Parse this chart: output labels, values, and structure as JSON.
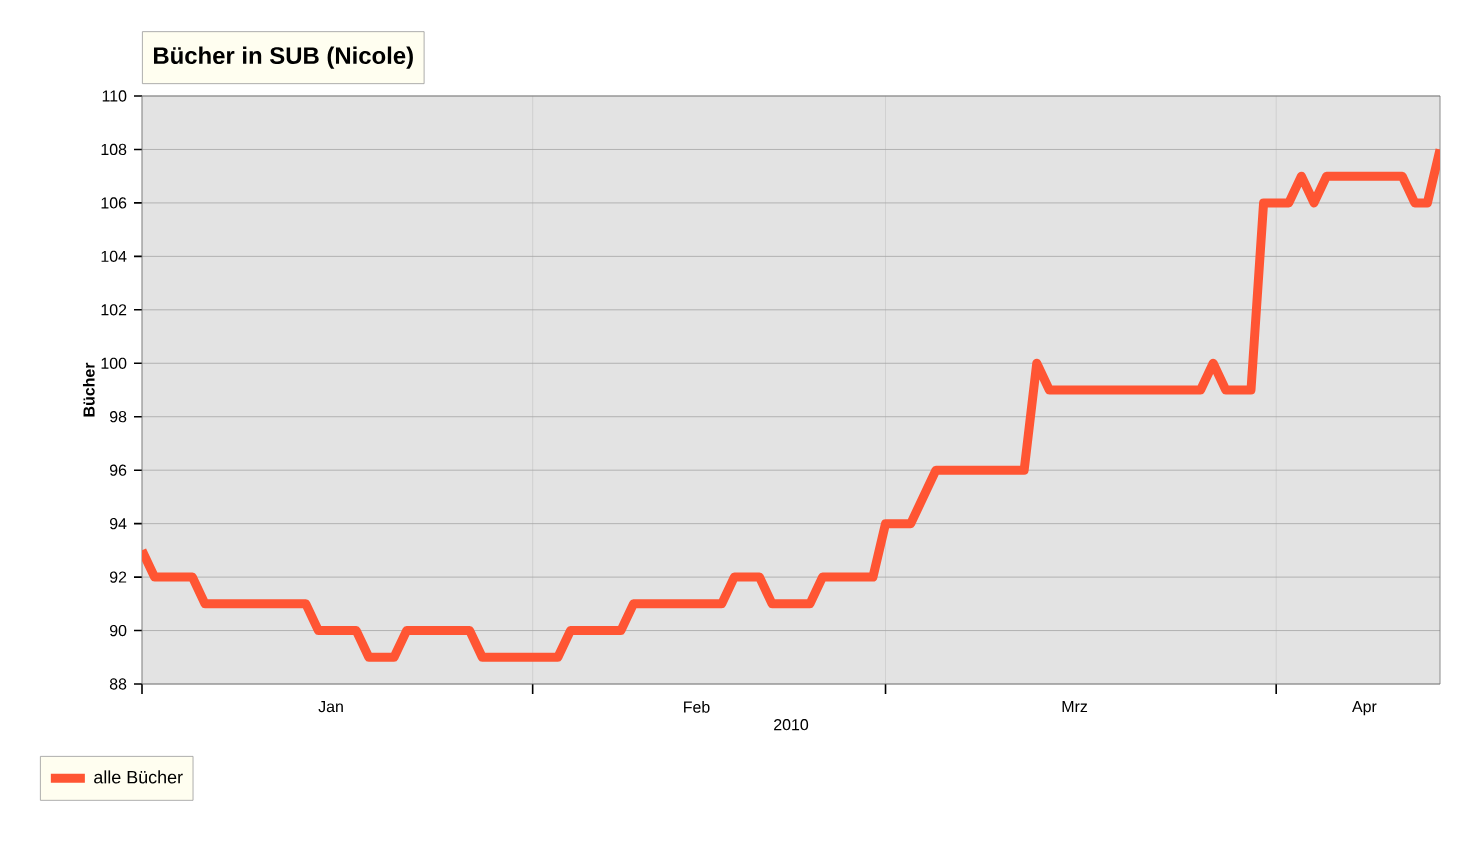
{
  "chart_data": {
    "type": "line",
    "title": "Bücher in SUB (Nicole)",
    "xlabel": "2010",
    "ylabel": "Bücher",
    "x": [
      "2010-01-01",
      "2010-01-02",
      "2010-01-05",
      "2010-01-06",
      "2010-01-14",
      "2010-01-15",
      "2010-01-18",
      "2010-01-19",
      "2010-01-21",
      "2010-01-22",
      "2010-01-27",
      "2010-01-28",
      "2010-02-03",
      "2010-02-04",
      "2010-02-08",
      "2010-02-09",
      "2010-02-16",
      "2010-02-17",
      "2010-02-19",
      "2010-02-20",
      "2010-02-23",
      "2010-02-24",
      "2010-02-28",
      "2010-03-01",
      "2010-03-03",
      "2010-03-05",
      "2010-03-12",
      "2010-03-13",
      "2010-03-14",
      "2010-03-26",
      "2010-03-27",
      "2010-03-28",
      "2010-03-30",
      "2010-03-31",
      "2010-04-02",
      "2010-04-03",
      "2010-04-04",
      "2010-04-05",
      "2010-04-11",
      "2010-04-12",
      "2010-04-13",
      "2010-04-14"
    ],
    "series": [
      {
        "name": "alle Bücher",
        "color": "#ff5533",
        "values": [
          93,
          92,
          92,
          91,
          91,
          90,
          90,
          89,
          89,
          90,
          90,
          89,
          89,
          90,
          90,
          91,
          91,
          92,
          92,
          91,
          91,
          92,
          92,
          94,
          94,
          96,
          96,
          100,
          99,
          99,
          100,
          99,
          99,
          106,
          106,
          107,
          106,
          107,
          107,
          106,
          106,
          108
        ]
      }
    ],
    "xlim": [
      "2010-01-01",
      "2010-04-14"
    ],
    "xticks": [
      {
        "value": "2010-01-01",
        "label": null
      },
      {
        "value": "2010-01-16",
        "label": "Jan"
      },
      {
        "value": "2010-02-01",
        "label": null
      },
      {
        "value": "2010-02-14",
        "label": "Feb"
      },
      {
        "value": "2010-03-01",
        "label": null
      },
      {
        "value": "2010-03-16",
        "label": "Mrz"
      },
      {
        "value": "2010-04-01",
        "label": null
      },
      {
        "value": "2010-04-08",
        "label": "Apr"
      }
    ],
    "ylim": [
      88,
      110
    ],
    "yticks": [
      88,
      90,
      92,
      94,
      96,
      98,
      100,
      102,
      104,
      106,
      108,
      110
    ],
    "grid": true,
    "legend": "bottom",
    "marker": "none",
    "line_style": "solid"
  }
}
